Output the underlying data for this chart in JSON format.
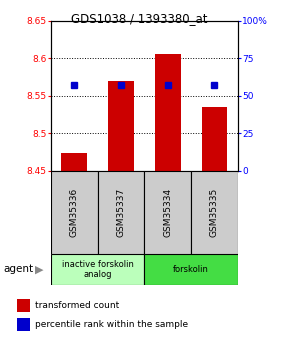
{
  "title": "GDS1038 / 1393380_at",
  "samples": [
    "GSM35336",
    "GSM35337",
    "GSM35334",
    "GSM35335"
  ],
  "bar_values": [
    8.474,
    8.57,
    8.605,
    8.535
  ],
  "bar_bottom": 8.45,
  "percentile_values": [
    57,
    57,
    57,
    57
  ],
  "ylim_left": [
    8.45,
    8.65
  ],
  "ylim_right": [
    0,
    100
  ],
  "yticks_left": [
    8.45,
    8.5,
    8.55,
    8.6,
    8.65
  ],
  "yticks_right": [
    0,
    25,
    50,
    75,
    100
  ],
  "bar_color": "#cc0000",
  "percentile_color": "#0000cc",
  "bg_color": "#ffffff",
  "plot_bg": "#ffffff",
  "agent_groups": [
    {
      "label": "inactive forskolin\nanalog",
      "color": "#bbffbb",
      "span": [
        0,
        2
      ]
    },
    {
      "label": "forskolin",
      "color": "#44dd44",
      "span": [
        2,
        4
      ]
    }
  ],
  "legend_bar_label": "transformed count",
  "legend_pct_label": "percentile rank within the sample",
  "agent_label": "agent",
  "sample_box_color": "#cccccc"
}
